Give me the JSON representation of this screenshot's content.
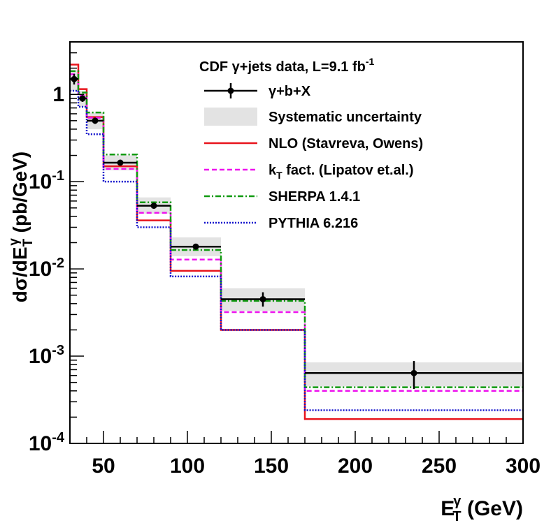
{
  "chart_data": {
    "type": "step-histogram",
    "title": "CDF γ+jets data, L=9.1 fb⁻¹",
    "xlabel": "E_T^γ (GeV)",
    "ylabel": "dσ/dE_T^γ (pb/GeV)",
    "xlim": [
      30,
      300
    ],
    "ylim": [
      0.0001,
      4
    ],
    "yscale": "log",
    "x_ticks": [
      50,
      100,
      150,
      200,
      250,
      300
    ],
    "y_ticks": [
      {
        "value": 1,
        "base": "1",
        "exp": ""
      },
      {
        "value": 0.1,
        "base": "10",
        "exp": "-1"
      },
      {
        "value": 0.01,
        "base": "10",
        "exp": "-2"
      },
      {
        "value": 0.001,
        "base": "10",
        "exp": "-3"
      },
      {
        "value": 0.0001,
        "base": "10",
        "exp": "-4"
      }
    ],
    "bin_edges": [
      30,
      35,
      40,
      50,
      70,
      90,
      120,
      170,
      300
    ],
    "data_x": [
      32.5,
      37.5,
      45,
      60,
      80,
      105,
      145,
      235
    ],
    "data": [
      1.5,
      0.9,
      0.5,
      0.165,
      0.053,
      0.018,
      0.0045,
      0.00064
    ],
    "data_err_lo": [
      1.3,
      0.82,
      0.46,
      0.155,
      0.05,
      0.017,
      0.0037,
      0.00042
    ],
    "data_err_hi": [
      1.72,
      0.98,
      0.54,
      0.175,
      0.056,
      0.019,
      0.0054,
      0.00088
    ],
    "syst_lo": [
      1.1,
      0.72,
      0.4,
      0.135,
      0.043,
      0.014,
      0.0033,
      0.00045
    ],
    "syst_hi": [
      1.9,
      1.1,
      0.62,
      0.2,
      0.066,
      0.023,
      0.006,
      0.00085
    ],
    "series": [
      {
        "name": "NLO (Stavreva, Owens)",
        "color": "#e8141c",
        "dash": "solid",
        "values": [
          2.2,
          1.15,
          0.55,
          0.15,
          0.036,
          0.0095,
          0.002,
          0.00019
        ]
      },
      {
        "name": "k_T fact. (Lipatov et.al.)",
        "color": "#ee12ee",
        "dash": "dashed",
        "values": [
          1.7,
          0.98,
          0.54,
          0.14,
          0.044,
          0.0128,
          0.0032,
          0.0004
        ]
      },
      {
        "name": "SHERPA 1.4.1",
        "color": "#109a10",
        "dash": "dashdot",
        "values": [
          1.85,
          1.05,
          0.62,
          0.205,
          0.058,
          0.0165,
          0.0043,
          0.00044
        ]
      },
      {
        "name": "PYTHIA 6.216",
        "color": "#1212cc",
        "dash": "dotted",
        "values": [
          1.1,
          0.72,
          0.35,
          0.1,
          0.03,
          0.0082,
          0.002,
          0.00024
        ]
      }
    ],
    "legend": {
      "title_main": "CDF γ+jets data, L=9.1 fb",
      "title_sup": "-1",
      "data_label": "γ+b+X",
      "syst_label": "Systematic uncertainty",
      "nlo_label": "NLO (Stavreva, Owens)",
      "kt_main": "k",
      "kt_sub": "T",
      "kt_rest": " fact. (Lipatov et.al.)",
      "sherpa_label": "SHERPA 1.4.1",
      "pythia_label": "PYTHIA 6.216"
    },
    "axis_labels": {
      "x_main": "E",
      "x_sup": "γ",
      "x_sub": "T",
      "x_rest": " (GeV)",
      "y_pre": "dσ/dE",
      "y_sup": "γ",
      "y_sub": "T",
      "y_rest": " (pb/GeV)"
    },
    "colors": {
      "data": "#000000",
      "syst_fill": "#e3e3e3"
    }
  }
}
